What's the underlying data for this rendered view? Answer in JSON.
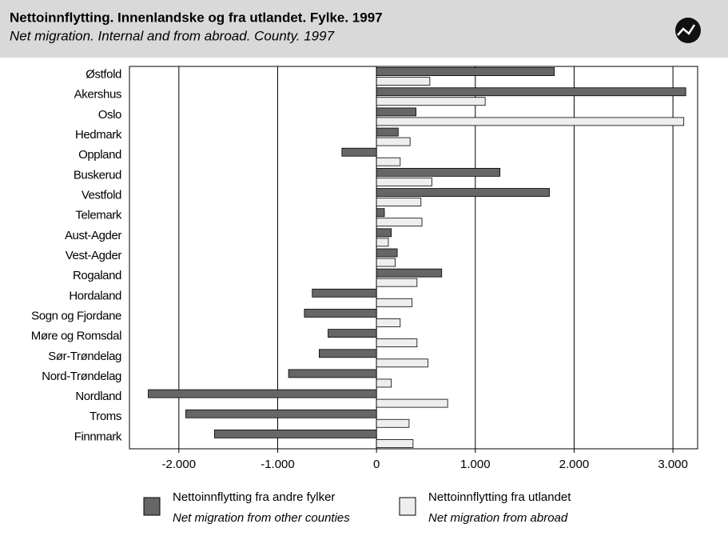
{
  "chart_data": {
    "type": "hbar",
    "title": "Nettoinnflytting. Innenlandske og fra utlandet. Fylke. 1997",
    "subtitle": "Net migration. Internal and from abroad. County. 1997",
    "categories": [
      "Østfold",
      "Akershus",
      "Oslo",
      "Hedmark",
      "Oppland",
      "Buskerud",
      "Vestfold",
      "Telemark",
      "Aust-Agder",
      "Vest-Agder",
      "Rogaland",
      "Hordaland",
      "Sogn og Fjordane",
      "Møre og Romsdal",
      "Sør-Trøndelag",
      "Nord-Trøndelag",
      "Nordland",
      "Troms",
      "Finnmark"
    ],
    "series": [
      {
        "name": "Nettoinnflytting fra andre fylker",
        "name_en": "Net migration from other counties",
        "color": "#666666",
        "values": [
          1800,
          3130,
          400,
          220,
          -350,
          1250,
          1750,
          80,
          150,
          210,
          660,
          -650,
          -730,
          -490,
          -580,
          -890,
          -2310,
          -1930,
          -1640
        ]
      },
      {
        "name": "Nettoinnflytting fra utlandet",
        "name_en": "Net migration from abroad",
        "color": "#eeeeee",
        "values": [
          540,
          1100,
          3110,
          340,
          240,
          560,
          450,
          460,
          120,
          190,
          410,
          360,
          240,
          410,
          520,
          150,
          720,
          330,
          370
        ]
      }
    ],
    "xlim": [
      -2500,
      3250
    ],
    "xticks": [
      {
        "value": -2000,
        "label": "-2.000"
      },
      {
        "value": -1000,
        "label": "-1.000"
      },
      0,
      {
        "value": 1000,
        "label": "1.000"
      },
      {
        "value": 2000,
        "label": "2.000"
      },
      {
        "value": 3000,
        "label": "3.000"
      }
    ],
    "grid": true
  }
}
